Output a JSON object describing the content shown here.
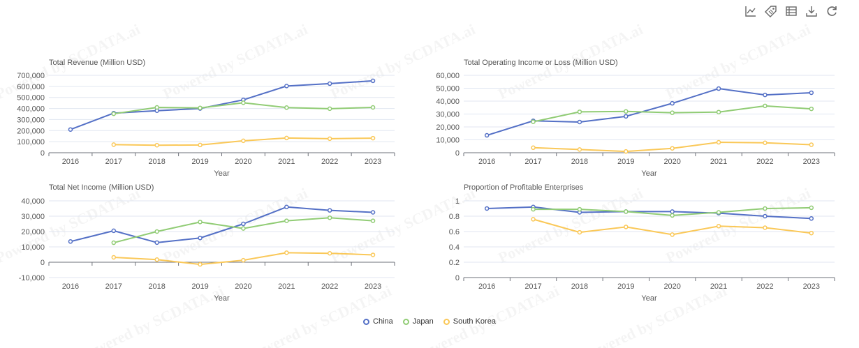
{
  "watermark": "Powered by SCDATA.ai",
  "toolbox": [
    "line-chart-icon",
    "tag-icon",
    "data-view-icon",
    "download-icon",
    "refresh-icon"
  ],
  "colors": {
    "China": "#5470c6",
    "Japan": "#91cc75",
    "South Korea": "#fac858"
  },
  "legend": [
    "China",
    "Japan",
    "South Korea"
  ],
  "chart_data": [
    {
      "type": "line",
      "title": "Total Revenue (Million USD)",
      "xlabel": "Year",
      "categories": [
        "2016",
        "2017",
        "2018",
        "2019",
        "2020",
        "2021",
        "2022",
        "2023"
      ],
      "ylim": [
        0,
        700000
      ],
      "yticks": [
        0,
        100000,
        200000,
        300000,
        400000,
        500000,
        600000,
        700000
      ],
      "ytick_labels": [
        "0",
        "100,000",
        "200,000",
        "300,000",
        "400,000",
        "500,000",
        "600,000",
        "700,000"
      ],
      "series": [
        {
          "name": "China",
          "values": [
            210000,
            358000,
            380000,
            400000,
            478000,
            603000,
            625000,
            650000
          ]
        },
        {
          "name": "Japan",
          "values": [
            null,
            352000,
            410000,
            405000,
            452000,
            408000,
            398000,
            410000
          ]
        },
        {
          "name": "South Korea",
          "values": [
            null,
            73000,
            68000,
            70000,
            108000,
            133000,
            127000,
            132000
          ]
        }
      ]
    },
    {
      "type": "line",
      "title": "Total Operating Income or Loss (Million USD)",
      "xlabel": "Year",
      "categories": [
        "2016",
        "2017",
        "2018",
        "2019",
        "2020",
        "2021",
        "2022",
        "2023"
      ],
      "ylim": [
        0,
        60000
      ],
      "yticks": [
        0,
        10000,
        20000,
        30000,
        40000,
        50000,
        60000
      ],
      "ytick_labels": [
        "0",
        "10,000",
        "20,000",
        "30,000",
        "40,000",
        "50,000",
        "60,000"
      ],
      "series": [
        {
          "name": "China",
          "values": [
            13500,
            24700,
            23800,
            28200,
            38300,
            49700,
            44800,
            46500
          ]
        },
        {
          "name": "Japan",
          "values": [
            null,
            24000,
            31700,
            32000,
            31000,
            31500,
            36300,
            34000
          ]
        },
        {
          "name": "South Korea",
          "values": [
            null,
            3900,
            2500,
            1000,
            3400,
            8100,
            7700,
            6200
          ]
        }
      ]
    },
    {
      "type": "line",
      "title": "Total Net Income (Million USD)",
      "xlabel": "Year",
      "categories": [
        "2016",
        "2017",
        "2018",
        "2019",
        "2020",
        "2021",
        "2022",
        "2023"
      ],
      "ylim": [
        -10000,
        40000
      ],
      "yticks": [
        -10000,
        0,
        10000,
        20000,
        30000,
        40000
      ],
      "ytick_labels": [
        "-10,000",
        "0",
        "10,000",
        "20,000",
        "30,000",
        "40,000"
      ],
      "series": [
        {
          "name": "China",
          "values": [
            13500,
            20500,
            12800,
            15800,
            25000,
            36000,
            33800,
            32500
          ]
        },
        {
          "name": "Japan",
          "values": [
            null,
            12700,
            20000,
            26200,
            22000,
            27000,
            29000,
            27000
          ]
        },
        {
          "name": "South Korea",
          "values": [
            null,
            3200,
            1700,
            -1400,
            1300,
            6200,
            5800,
            4800
          ]
        }
      ]
    },
    {
      "type": "line",
      "title": "Proportion of Profitable Enterprises",
      "xlabel": "Year",
      "categories": [
        "2016",
        "2017",
        "2018",
        "2019",
        "2020",
        "2021",
        "2022",
        "2023"
      ],
      "ylim": [
        0,
        1
      ],
      "yticks": [
        0,
        0.2,
        0.4,
        0.6,
        0.8,
        1
      ],
      "ytick_labels": [
        "0",
        "0.2",
        "0.4",
        "0.6",
        "0.8",
        "1"
      ],
      "series": [
        {
          "name": "China",
          "values": [
            0.9,
            0.92,
            0.85,
            0.86,
            0.86,
            0.84,
            0.8,
            0.77
          ]
        },
        {
          "name": "Japan",
          "values": [
            null,
            0.89,
            0.89,
            0.86,
            0.81,
            0.85,
            0.9,
            0.91
          ]
        },
        {
          "name": "South Korea",
          "values": [
            null,
            0.76,
            0.59,
            0.66,
            0.56,
            0.67,
            0.65,
            0.58
          ]
        }
      ]
    }
  ]
}
